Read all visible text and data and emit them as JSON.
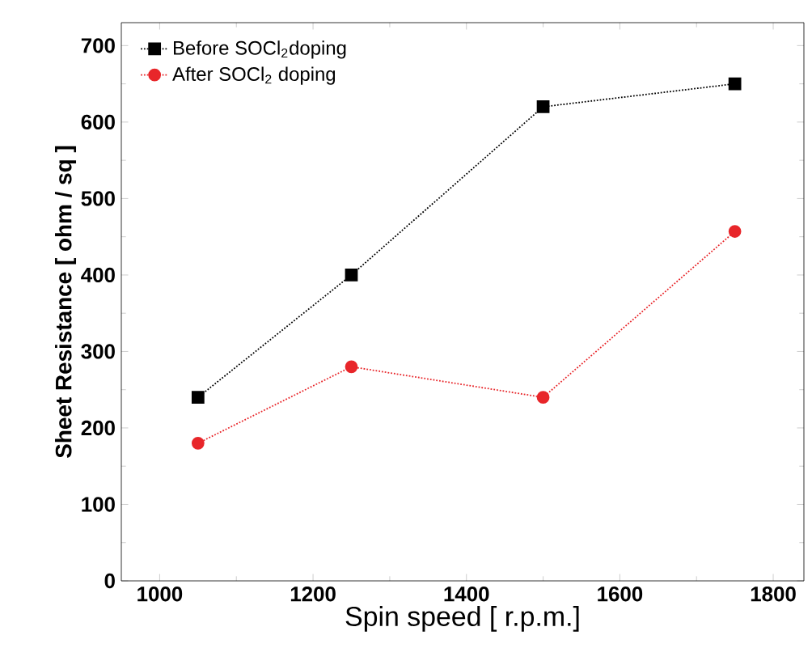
{
  "chart_data": {
    "type": "line",
    "xlabel": "Spin speed [ r.p.m.]",
    "ylabel": "Sheet Resistance [ ohm / sq ]",
    "x": [
      1050,
      1250,
      1500,
      1750
    ],
    "series": [
      {
        "name": "Before SOCl$_{2}$doping",
        "color": "#000000",
        "marker": "square",
        "values": [
          240,
          400,
          620,
          650
        ]
      },
      {
        "name": "After SOCl$_{2}$ doping",
        "color": "#e8262a",
        "marker": "circle",
        "values": [
          180,
          280,
          240,
          457
        ]
      }
    ],
    "xlim": [
      950,
      1840
    ],
    "ylim": [
      0,
      730
    ],
    "xticks": [
      1000,
      1200,
      1400,
      1600,
      1800
    ],
    "yticks": [
      0,
      100,
      200,
      300,
      400,
      500,
      600,
      700
    ],
    "legend": "top left",
    "line_style": "dotted",
    "grid": false
  }
}
